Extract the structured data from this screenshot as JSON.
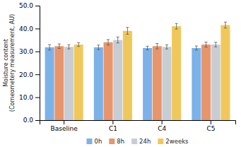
{
  "chart_data": {
    "type": "bar",
    "categories": [
      "Baseline",
      "C1",
      "C4",
      "C5"
    ],
    "series": [
      {
        "name": "0h",
        "color": "#7cb2e8",
        "values": [
          31.8,
          31.8,
          31.5,
          31.5
        ],
        "errors": [
          1.2,
          1.0,
          0.8,
          0.9
        ]
      },
      {
        "name": "8h",
        "color": "#e8956c",
        "values": [
          32.3,
          34.0,
          32.3,
          33.0
        ],
        "errors": [
          1.0,
          1.2,
          1.2,
          1.1
        ]
      },
      {
        "name": "24h",
        "color": "#c8cdd4",
        "values": [
          32.0,
          35.0,
          32.0,
          33.0
        ],
        "errors": [
          0.9,
          1.3,
          0.9,
          1.0
        ]
      },
      {
        "name": "2weeks",
        "color": "#f0c85a",
        "values": [
          33.0,
          39.0,
          41.0,
          41.5
        ],
        "errors": [
          0.8,
          1.5,
          1.2,
          1.3
        ]
      }
    ],
    "ylabel": "Moisture content\n(Corneometery measurement, AU)",
    "ylim": [
      0.0,
      50.0
    ],
    "yticks": [
      {
        "value": 0.0,
        "label": "0.0"
      },
      {
        "value": 10.0,
        "label": "10.0"
      },
      {
        "value": 20.0,
        "label": "20.0"
      },
      {
        "value": 30.0,
        "label": "30.0"
      },
      {
        "value": 40.0,
        "label": "40.0"
      },
      {
        "value": 50.0,
        "label": "50.0"
      }
    ],
    "grid": false,
    "legend": "bottom"
  }
}
